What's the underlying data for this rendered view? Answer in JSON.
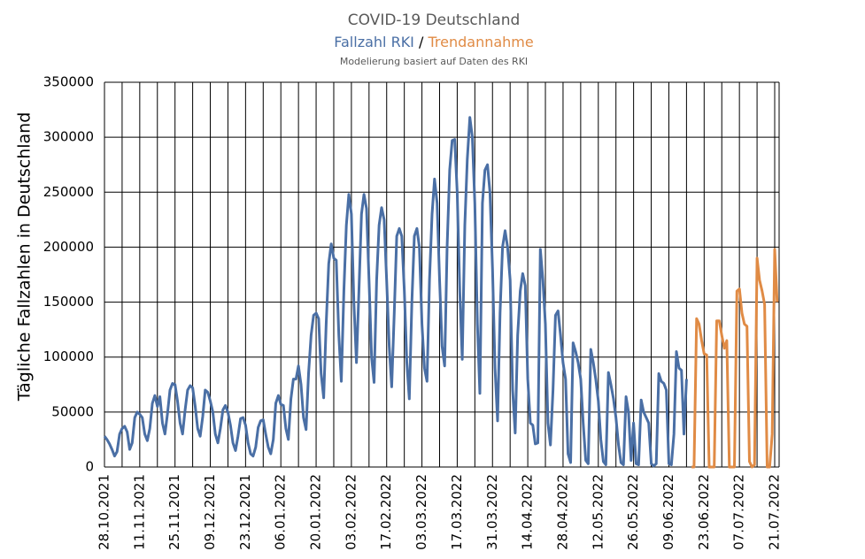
{
  "chart_data": {
    "type": "line",
    "title": "COVID-19 Deutschland",
    "subtitle_separator": "/",
    "note": "Modelierung basiert auf Daten des RKI",
    "y_label": "Tägliche Fallzahlen in Deutschland",
    "ylim": [
      0,
      350000
    ],
    "yticks": [
      0,
      50000,
      100000,
      150000,
      200000,
      250000,
      300000,
      350000
    ],
    "grid": true,
    "categories": [
      "28.10.2021",
      null,
      null,
      null,
      null,
      null,
      null,
      null,
      null,
      null,
      null,
      null,
      null,
      null,
      "11.11.2021",
      null,
      null,
      null,
      null,
      null,
      null,
      null,
      null,
      null,
      null,
      null,
      null,
      null,
      "25.11.2021",
      null,
      null,
      null,
      null,
      null,
      null,
      null,
      null,
      null,
      null,
      null,
      null,
      null,
      "09.12.2021",
      null,
      null,
      null,
      null,
      null,
      null,
      null,
      null,
      null,
      null,
      null,
      null,
      null,
      "23.12.2021",
      null,
      null,
      null,
      null,
      null,
      null,
      null,
      null,
      null,
      null,
      null,
      null,
      null,
      "06.01.2022",
      null,
      null,
      null,
      null,
      null,
      null,
      null,
      null,
      null,
      null,
      null,
      null,
      null,
      "20.01.2022",
      null,
      null,
      null,
      null,
      null,
      null,
      null,
      null,
      null,
      null,
      null,
      null,
      null,
      "03.02.2022",
      null,
      null,
      null,
      null,
      null,
      null,
      null,
      null,
      null,
      null,
      null,
      null,
      null,
      "17.02.2022",
      null,
      null,
      null,
      null,
      null,
      null,
      null,
      null,
      null,
      null,
      null,
      null,
      null,
      "03.03.2022",
      null,
      null,
      null,
      null,
      null,
      null,
      null,
      null,
      null,
      null,
      null,
      null,
      null,
      "17.03.2022",
      null,
      null,
      null,
      null,
      null,
      null,
      null,
      null,
      null,
      null,
      null,
      null,
      null,
      "31.03.2022",
      null,
      null,
      null,
      null,
      null,
      null,
      null,
      null,
      null,
      null,
      null,
      null,
      null,
      "14.04.2022",
      null,
      null,
      null,
      null,
      null,
      null,
      null,
      null,
      null,
      null,
      null,
      null,
      null,
      "28.04.2022",
      null,
      null,
      null,
      null,
      null,
      null,
      null,
      null,
      null,
      null,
      null,
      null,
      null,
      "12.05.2022",
      null,
      null,
      null,
      null,
      null,
      null,
      null,
      null,
      null,
      null,
      null,
      null,
      null,
      "26.05.2022",
      null,
      null,
      null,
      null,
      null,
      null,
      null,
      null,
      null,
      null,
      null,
      null,
      null,
      "09.06.2022",
      null,
      null,
      null,
      null,
      null,
      null,
      null,
      null,
      null,
      null,
      null,
      null,
      null,
      "23.06.2022",
      null,
      null,
      null,
      null,
      null,
      null,
      null,
      null,
      null,
      null,
      null,
      null,
      null,
      "07.07.2022",
      null,
      null,
      null,
      null,
      null,
      null,
      null,
      null,
      null,
      null,
      null,
      null,
      null,
      "21.07.2022",
      null
    ],
    "series": [
      {
        "name": "Fallzahl RKI",
        "color": "#4a6fa5",
        "values": [
          28000,
          25000,
          21000,
          16000,
          10000,
          14000,
          30000,
          35000,
          37000,
          32000,
          16000,
          22000,
          45000,
          50000,
          48000,
          45000,
          30000,
          24000,
          35000,
          58000,
          65000,
          55000,
          64000,
          40000,
          30000,
          48000,
          70000,
          76000,
          75000,
          60000,
          40000,
          30000,
          52000,
          70000,
          74000,
          72000,
          55000,
          35000,
          28000,
          46000,
          70000,
          68000,
          60000,
          50000,
          30000,
          22000,
          35000,
          52000,
          56000,
          50000,
          38000,
          22000,
          15000,
          28000,
          44000,
          45000,
          38000,
          22000,
          12000,
          10000,
          18000,
          36000,
          42000,
          43000,
          30000,
          18000,
          12000,
          25000,
          58000,
          65000,
          57000,
          56000,
          35000,
          25000,
          62000,
          80000,
          80000,
          92000,
          75000,
          45000,
          34000,
          85000,
          120000,
          138000,
          140000,
          135000,
          85000,
          63000,
          130000,
          185000,
          203000,
          190000,
          188000,
          120000,
          78000,
          160000,
          220000,
          248000,
          230000,
          150000,
          95000,
          160000,
          230000,
          248000,
          235000,
          170000,
          100000,
          77000,
          170000,
          220000,
          236000,
          225000,
          170000,
          110000,
          73000,
          140000,
          210000,
          217000,
          210000,
          160000,
          95000,
          62000,
          150000,
          210000,
          217000,
          200000,
          130000,
          90000,
          78000,
          170000,
          230000,
          262000,
          240000,
          170000,
          110000,
          92000,
          200000,
          270000,
          297000,
          298000,
          250000,
          160000,
          98000,
          220000,
          280000,
          318000,
          300000,
          240000,
          130000,
          67000,
          240000,
          270000,
          275000,
          250000,
          180000,
          90000,
          42000,
          140000,
          200000,
          215000,
          200000,
          170000,
          70000,
          31000,
          120000,
          160000,
          176000,
          165000,
          80000,
          40000,
          38000,
          21000,
          22000,
          198000,
          170000,
          130000,
          40000,
          20000,
          70000,
          138000,
          142000,
          120000,
          95000,
          80000,
          12000,
          4000,
          113000,
          105000,
          95000,
          80000,
          40000,
          6000,
          3000,
          107000,
          95000,
          80000,
          60000,
          25000,
          5000,
          2000,
          86000,
          75000,
          62000,
          45000,
          20000,
          4000,
          2000,
          64000,
          50000,
          6000,
          40000,
          3000,
          2000,
          61000,
          50000,
          45000,
          40000,
          3000,
          1000,
          3000,
          85000,
          78000,
          76000,
          70000,
          3000,
          2000,
          30000,
          105000,
          90000,
          88000,
          30000,
          80000,
          null,
          null,
          null,
          null,
          null,
          null,
          null,
          null,
          null,
          null,
          null,
          null,
          null,
          null,
          null,
          null,
          null,
          null,
          null,
          null,
          null,
          null,
          null,
          null,
          null,
          null,
          null,
          null,
          null,
          null,
          null,
          null,
          null,
          null,
          null,
          null
        ]
      },
      {
        "name": "Trendannahme",
        "color": "#e08b45",
        "values": [
          null,
          null,
          null,
          null,
          null,
          null,
          null,
          null,
          null,
          null,
          null,
          null,
          null,
          null,
          null,
          null,
          null,
          null,
          null,
          null,
          null,
          null,
          null,
          null,
          null,
          null,
          null,
          null,
          null,
          null,
          null,
          null,
          null,
          null,
          null,
          null,
          null,
          null,
          null,
          null,
          null,
          null,
          null,
          null,
          null,
          null,
          null,
          null,
          null,
          null,
          null,
          null,
          null,
          null,
          null,
          null,
          null,
          null,
          null,
          null,
          null,
          null,
          null,
          null,
          null,
          null,
          null,
          null,
          null,
          null,
          null,
          null,
          null,
          null,
          null,
          null,
          null,
          null,
          null,
          null,
          null,
          null,
          null,
          null,
          null,
          null,
          null,
          null,
          null,
          null,
          null,
          null,
          null,
          null,
          null,
          null,
          null,
          null,
          null,
          null,
          null,
          null,
          null,
          null,
          null,
          null,
          null,
          null,
          null,
          null,
          null,
          null,
          null,
          null,
          null,
          null,
          null,
          null,
          null,
          null,
          null,
          null,
          null,
          null,
          null,
          null,
          null,
          null,
          null,
          null,
          null,
          null,
          null,
          null,
          null,
          null,
          null,
          null,
          null,
          null,
          null,
          null,
          null,
          null,
          null,
          null,
          null,
          null,
          null,
          null,
          null,
          null,
          null,
          null,
          null,
          null,
          null,
          null,
          null,
          null,
          null,
          null,
          null,
          null,
          null,
          null,
          null,
          null,
          null,
          null,
          null,
          null,
          null,
          null,
          null,
          null,
          null,
          null,
          null,
          null,
          null,
          null,
          null,
          null,
          null,
          null,
          null,
          null,
          null,
          null,
          null,
          null,
          null,
          null,
          null,
          null,
          null,
          null,
          null,
          null,
          null,
          null,
          null,
          null,
          null,
          null,
          null,
          null,
          null,
          null,
          null,
          null,
          null,
          null,
          null,
          null,
          null,
          null,
          null,
          null,
          null,
          null,
          null,
          null,
          null,
          null,
          null,
          null,
          null,
          null,
          null,
          null,
          null,
          0,
          0,
          135000,
          130000,
          115000,
          103000,
          102000,
          0,
          0,
          0,
          133000,
          133000,
          120000,
          108000,
          115000,
          0,
          0,
          0,
          160000,
          162000,
          140000,
          130000,
          128000,
          5000,
          0,
          2000,
          190000,
          170000,
          160000,
          148000,
          0,
          0,
          30000,
          198000,
          150000
        ]
      }
    ]
  }
}
